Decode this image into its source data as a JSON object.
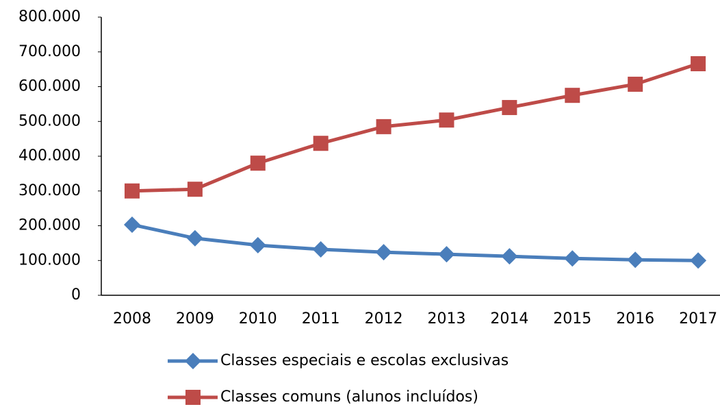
{
  "chart_data": {
    "type": "line",
    "categories": [
      "2008",
      "2009",
      "2010",
      "2011",
      "2012",
      "2013",
      "2014",
      "2015",
      "2016",
      "2017"
    ],
    "series": [
      {
        "name": "Classes especiais e escolas exclusivas",
        "color": "#4a7ebb",
        "marker": "diamond",
        "values": [
          203000,
          164000,
          144000,
          132000,
          124000,
          118000,
          112000,
          106000,
          102000,
          100000
        ]
      },
      {
        "name": "Classes comuns (alunos incluídos)",
        "color": "#be4b48",
        "marker": "square",
        "values": [
          300000,
          305000,
          380000,
          437000,
          485000,
          504000,
          540000,
          575000,
          607000,
          666000
        ]
      }
    ],
    "ylim": [
      0,
      800000
    ],
    "yticks": [
      0,
      {
        "value": 100000,
        "label": "100.000"
      },
      {
        "value": 200000,
        "label": "200.000"
      },
      {
        "value": 300000,
        "label": "300.000"
      },
      {
        "value": 400000,
        "label": "400.000"
      },
      {
        "value": 500000,
        "label": "500.000"
      },
      {
        "value": 600000,
        "label": "600.000"
      },
      {
        "value": 700000,
        "label": "700.000"
      },
      {
        "value": 800000,
        "label": "800.000"
      }
    ],
    "grid": false,
    "legend": "bottom"
  }
}
